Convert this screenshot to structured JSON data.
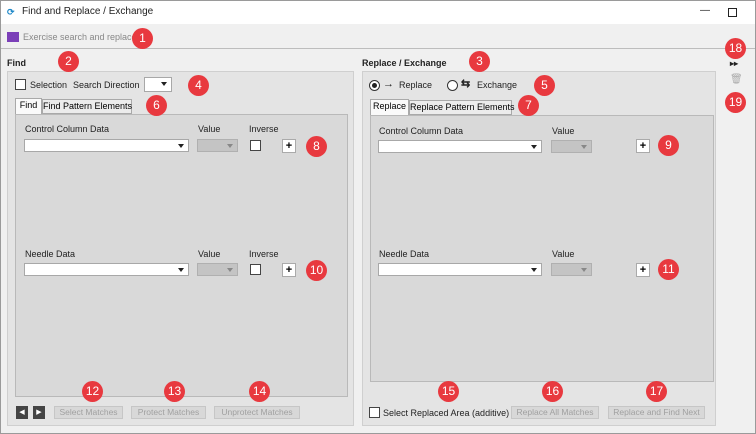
{
  "window": {
    "title": "Find and Replace / Exchange"
  },
  "toolbar": {
    "breadcrumb": "Exercise search and replace"
  },
  "find": {
    "heading": "Find",
    "selection": "Selection",
    "search_direction": "Search Direction",
    "tabs": [
      "Find",
      "Find Pattern Elements"
    ],
    "control_column_label": "Control Column Data",
    "control_value_label": "Value",
    "control_inverse_label": "Inverse",
    "control_add": "+",
    "needle_label": "Needle Data",
    "needle_value_label": "Value",
    "needle_inverse_label": "Inverse",
    "needle_add": "+",
    "buttons": [
      "Select Matches",
      "Protect Matches",
      "Unprotect Matches"
    ]
  },
  "replace": {
    "heading": "Replace / Exchange",
    "modes": [
      "Replace",
      "Exchange"
    ],
    "tabs": [
      "Replace",
      "Replace Pattern Elements"
    ],
    "control_column_label": "Control Column Data",
    "control_value_label": "Value",
    "control_add": "+",
    "needle_label": "Needle Data",
    "needle_value_label": "Value",
    "needle_add": "+",
    "select_area": "Select Replaced Area (additive)",
    "buttons": [
      "Replace All Matches",
      "Replace and Find Next"
    ]
  },
  "callouts": [
    "1",
    "2",
    "3",
    "4",
    "5",
    "6",
    "7",
    "8",
    "9",
    "10",
    "11",
    "12",
    "13",
    "14",
    "15",
    "16",
    "17",
    "18",
    "19"
  ]
}
